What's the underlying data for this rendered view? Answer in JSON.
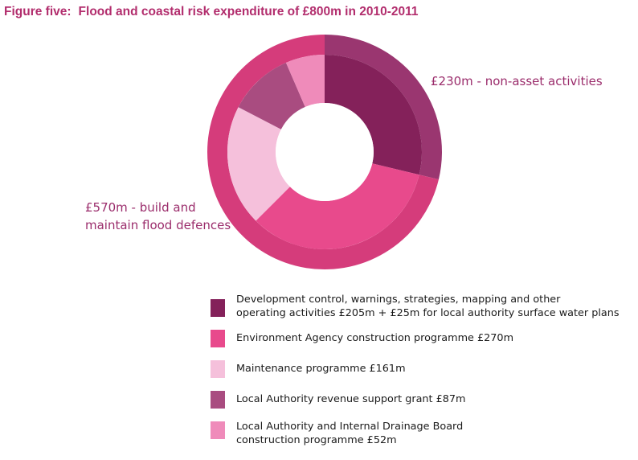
{
  "title": {
    "label": "Figure five:",
    "text": "Flood and coastal risk expenditure of £800m in 2010-2011"
  },
  "chart_data": {
    "type": "pie",
    "title": "Flood and coastal risk expenditure of £800m in 2010-2011",
    "total": 800,
    "outer_ring": [
      {
        "name": "£230m - non-asset activities",
        "value": 230,
        "color": "#9a3670"
      },
      {
        "name": "£570m - build and maintain flood defences",
        "value": 570,
        "color": "#d53c7b"
      }
    ],
    "inner_ring": [
      {
        "label": "Development control, warnings, strategies, mapping and other operating activities £205m + £25m for local authority surface water plans",
        "value": 230,
        "color": "#84215a"
      },
      {
        "label": "Environment Agency construction programme £270m",
        "value": 270,
        "color": "#e84a8c"
      },
      {
        "label": "Maintenance programme £161m",
        "value": 161,
        "color": "#f5c0db"
      },
      {
        "label": "Local Authority revenue support grant £87m",
        "value": 87,
        "color": "#a94c80"
      },
      {
        "label": "Local Authority and Internal Drainage Board construction programme £52m",
        "value": 52,
        "color": "#ef8bba"
      }
    ]
  },
  "outer_labels": {
    "nonasset": "£230m - non-asset activities",
    "build_line1": "£570m - build and",
    "build_line2": "maintain flood defences"
  },
  "legend": [
    {
      "lines": [
        "Development control, warnings, strategies, mapping and other",
        "operating activities £205m + £25m for local authority surface water plans"
      ],
      "color": "#84215a"
    },
    {
      "lines": [
        "Environment Agency construction programme £270m"
      ],
      "color": "#e84a8c"
    },
    {
      "lines": [
        "Maintenance programme £161m"
      ],
      "color": "#f5c0db"
    },
    {
      "lines": [
        "Local Authority revenue support grant £87m"
      ],
      "color": "#a94c80"
    },
    {
      "lines": [
        "Local Authority and Internal Drainage Board",
        "construction programme £52m"
      ],
      "color": "#ef8bba"
    }
  ]
}
